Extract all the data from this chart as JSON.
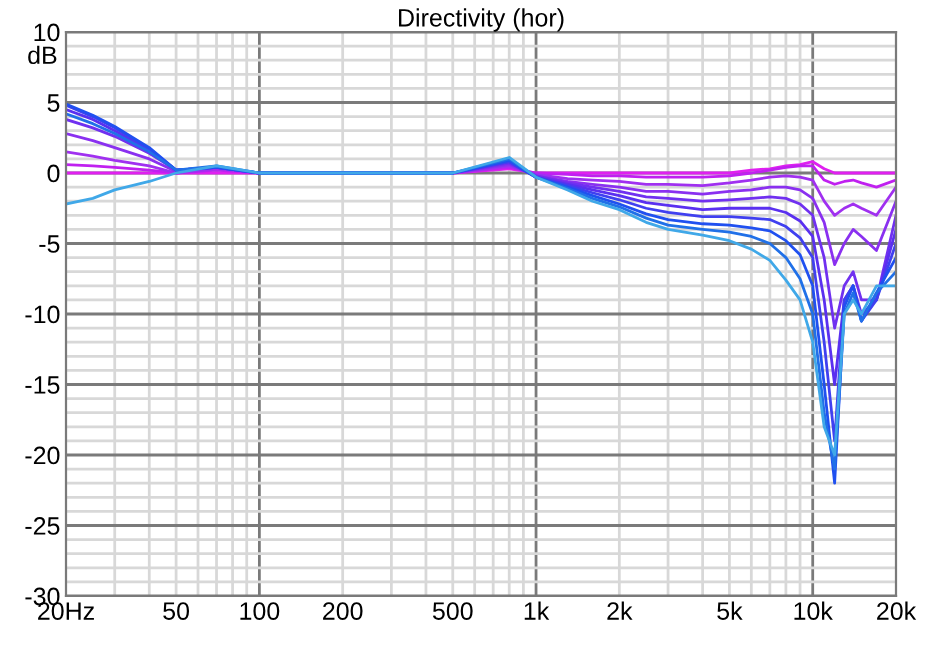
{
  "chart_data": {
    "type": "line",
    "title": "Directivity (hor)",
    "ylabel": "dB",
    "x": [
      20,
      25,
      30,
      40,
      50,
      70,
      100,
      200,
      500,
      800,
      1000,
      1300,
      1600,
      2000,
      2500,
      3000,
      4000,
      5000,
      6000,
      7000,
      8000,
      9000,
      10000,
      11000,
      12000,
      13000,
      14000,
      15000,
      17000,
      20000
    ],
    "series": [
      {
        "color": "#e020f0",
        "values": [
          0,
          0,
          0,
          0,
          0,
          0,
          0,
          0,
          0,
          0.3,
          0,
          0,
          0,
          0,
          0,
          0,
          0,
          0,
          0.2,
          0.3,
          0.5,
          0.6,
          0.8,
          0.3,
          0,
          0,
          0,
          0,
          0,
          0
        ]
      },
      {
        "color": "#c020f0",
        "values": [
          0.6,
          0.5,
          0.4,
          0.2,
          0,
          0.2,
          0,
          0,
          0,
          0.4,
          0,
          -0.1,
          -0.2,
          -0.2,
          -0.3,
          -0.3,
          -0.3,
          -0.2,
          0,
          0.2,
          0.4,
          0.5,
          0.5,
          -0.5,
          -0.8,
          -0.6,
          -0.5,
          -0.7,
          -1,
          -0.5
        ]
      },
      {
        "color": "#a030f0",
        "values": [
          1.5,
          1.2,
          0.9,
          0.5,
          0,
          0.3,
          0,
          0,
          0,
          0.5,
          -0.1,
          -0.4,
          -0.5,
          -0.6,
          -0.8,
          -0.8,
          -0.9,
          -0.7,
          -0.5,
          -0.3,
          -0.2,
          -0.3,
          -0.5,
          -2,
          -3,
          -2.5,
          -2.2,
          -2.5,
          -3,
          -1
        ]
      },
      {
        "color": "#8a30f0",
        "values": [
          2.8,
          2.3,
          1.8,
          1,
          0.1,
          0.4,
          0,
          0,
          0,
          0.6,
          -0.2,
          -0.6,
          -0.8,
          -1,
          -1.3,
          -1.3,
          -1.5,
          -1.3,
          -1.2,
          -1,
          -1,
          -1.2,
          -1.8,
          -3.5,
          -6.5,
          -5,
          -4,
          -4.5,
          -5.5,
          -2
        ]
      },
      {
        "color": "#7030f0",
        "values": [
          3.8,
          3.2,
          2.6,
          1.4,
          0.2,
          0.4,
          0,
          0,
          0,
          0.7,
          -0.2,
          -0.7,
          -1,
          -1.3,
          -1.7,
          -1.8,
          -2,
          -1.9,
          -1.8,
          -1.7,
          -1.8,
          -2.2,
          -3,
          -6,
          -11,
          -8,
          -7,
          -9,
          -9,
          -3
        ]
      },
      {
        "color": "#5a30f0",
        "values": [
          4.5,
          3.8,
          3,
          1.6,
          0.2,
          0.4,
          0,
          0,
          0,
          0.8,
          -0.3,
          -0.8,
          -1.2,
          -1.6,
          -2.1,
          -2.3,
          -2.6,
          -2.5,
          -2.5,
          -2.5,
          -2.8,
          -3.4,
          -4.5,
          -9,
          -15,
          -9,
          -8,
          -10,
          -9,
          -4
        ]
      },
      {
        "color": "#4040f0",
        "values": [
          4.8,
          4,
          3.2,
          1.7,
          0.2,
          0.4,
          0,
          0,
          0,
          0.8,
          -0.3,
          -0.9,
          -1.4,
          -1.9,
          -2.5,
          -2.8,
          -3.1,
          -3.1,
          -3.2,
          -3.3,
          -3.8,
          -4.6,
          -6,
          -12,
          -19,
          -9,
          -8,
          -10.5,
          -9,
          -5
        ]
      },
      {
        "color": "#2050f0",
        "values": [
          4.9,
          4.1,
          3.3,
          1.8,
          0.2,
          0.4,
          0,
          0,
          0,
          0.9,
          -0.3,
          -1,
          -1.6,
          -2.2,
          -2.9,
          -3.3,
          -3.6,
          -3.7,
          -3.9,
          -4.1,
          -4.8,
          -5.8,
          -8,
          -15,
          -22,
          -9.5,
          -8,
          -10.5,
          -8.5,
          -6
        ]
      },
      {
        "color": "#2070e8",
        "values": [
          4.2,
          3.5,
          2.8,
          1.5,
          0.2,
          0.5,
          0,
          0,
          0,
          1,
          -0.3,
          -1.1,
          -1.8,
          -2.4,
          -3.2,
          -3.7,
          -4,
          -4.2,
          -4.5,
          -5,
          -6,
          -7.5,
          -10,
          -17,
          -21,
          -10,
          -8.5,
          -10.5,
          -8.5,
          -7
        ]
      },
      {
        "color": "#40a8e8",
        "values": [
          -2.2,
          -1.8,
          -1.2,
          -0.6,
          0,
          0.5,
          0,
          0,
          0,
          1.1,
          -0.3,
          -1.2,
          -2,
          -2.6,
          -3.5,
          -4,
          -4.4,
          -4.8,
          -5.4,
          -6.2,
          -7.6,
          -9,
          -12,
          -18,
          -20,
          -10,
          -9,
          -10,
          -8,
          -8
        ]
      }
    ],
    "log": "x",
    "xlim": [
      20,
      20000
    ],
    "ylim": [
      -30,
      10
    ],
    "xticks": [
      {
        "value": 20,
        "label": "20Hz"
      },
      50,
      100,
      200,
      500,
      {
        "value": 1000,
        "label": "1k"
      },
      {
        "value": 2000,
        "label": "2k"
      },
      {
        "value": 5000,
        "label": "5k"
      },
      {
        "value": 10000,
        "label": "10k"
      },
      {
        "value": 20000,
        "label": "20k"
      }
    ],
    "yticks": [
      -30,
      -25,
      -20,
      -15,
      -10,
      -5,
      0,
      5,
      10
    ],
    "grid": true,
    "marker": "none",
    "line_style": "solid"
  }
}
